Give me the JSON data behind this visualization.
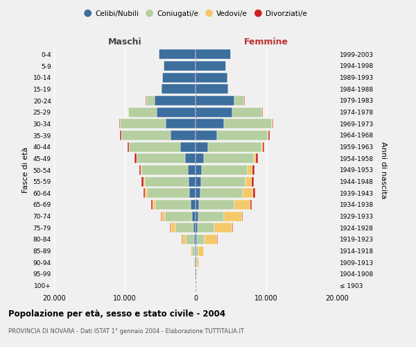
{
  "age_groups": [
    "100+",
    "95-99",
    "90-94",
    "85-89",
    "80-84",
    "75-79",
    "70-74",
    "65-69",
    "60-64",
    "55-59",
    "50-54",
    "45-49",
    "40-44",
    "35-39",
    "30-34",
    "25-29",
    "20-24",
    "15-19",
    "10-14",
    "5-9",
    "0-4"
  ],
  "birth_years": [
    "≤ 1903",
    "1904-1908",
    "1909-1913",
    "1914-1918",
    "1919-1923",
    "1924-1928",
    "1929-1933",
    "1934-1938",
    "1939-1943",
    "1944-1948",
    "1949-1953",
    "1954-1958",
    "1959-1963",
    "1964-1968",
    "1969-1973",
    "1974-1978",
    "1979-1983",
    "1984-1988",
    "1989-1993",
    "1994-1998",
    "1999-2003"
  ],
  "colors": {
    "celibi": "#3c6e9e",
    "coniugati": "#b5cfa0",
    "vedovi": "#f5c96a",
    "divorziati": "#cc2222"
  },
  "males": {
    "celibi": [
      20,
      50,
      80,
      120,
      200,
      300,
      500,
      700,
      900,
      1000,
      1100,
      1500,
      2200,
      3500,
      4200,
      5500,
      5800,
      4800,
      4700,
      4500,
      5200
    ],
    "coniugati": [
      10,
      30,
      100,
      350,
      1200,
      2500,
      3800,
      5000,
      6000,
      6200,
      6500,
      6800,
      7200,
      7000,
      6500,
      4000,
      1200,
      100,
      50,
      20,
      10
    ],
    "vedovi": [
      5,
      20,
      80,
      200,
      500,
      700,
      500,
      400,
      250,
      150,
      100,
      70,
      50,
      30,
      20,
      10,
      5,
      2,
      1,
      1,
      0
    ],
    "divorziati": [
      0,
      0,
      5,
      10,
      30,
      80,
      120,
      150,
      200,
      250,
      250,
      220,
      180,
      150,
      100,
      40,
      10,
      0,
      0,
      0,
      0
    ]
  },
  "females": {
    "celibi": [
      30,
      60,
      90,
      130,
      180,
      250,
      350,
      500,
      650,
      750,
      900,
      1200,
      1800,
      3000,
      4000,
      5200,
      5500,
      4600,
      4500,
      4300,
      5000
    ],
    "coniugati": [
      5,
      20,
      80,
      300,
      1100,
      2400,
      3700,
      5000,
      6000,
      6300,
      6500,
      7000,
      7500,
      7200,
      6800,
      4200,
      1400,
      120,
      60,
      25,
      12
    ],
    "vedovi": [
      15,
      80,
      300,
      700,
      1800,
      2500,
      2500,
      2200,
      1500,
      900,
      600,
      350,
      180,
      80,
      40,
      15,
      5,
      2,
      1,
      0,
      0
    ],
    "divorziati": [
      0,
      0,
      5,
      15,
      40,
      100,
      150,
      200,
      280,
      320,
      330,
      300,
      250,
      200,
      120,
      50,
      15,
      2,
      0,
      0,
      0
    ]
  },
  "xlim": 20000,
  "xticks": [
    -20000,
    -10000,
    0,
    10000,
    20000
  ],
  "xtick_labels": [
    "20.000",
    "10.000",
    "0",
    "10.000",
    "20.000"
  ],
  "title": "Popolazione per età, sesso e stato civile - 2004",
  "subtitle": "PROVINCIA DI NOVARA - Dati ISTAT 1° gennaio 2004 - Elaborazione TUTTITALIA.IT",
  "ylabel_left": "Fasce di età",
  "ylabel_right": "Anni di nascita",
  "label_maschi": "Maschi",
  "label_femmine": "Femmine",
  "legend_labels": [
    "Celibi/Nubili",
    "Coniugati/e",
    "Vedovi/e",
    "Divorziati/e"
  ],
  "background_color": "#f0f0f0",
  "bar_height": 0.85
}
